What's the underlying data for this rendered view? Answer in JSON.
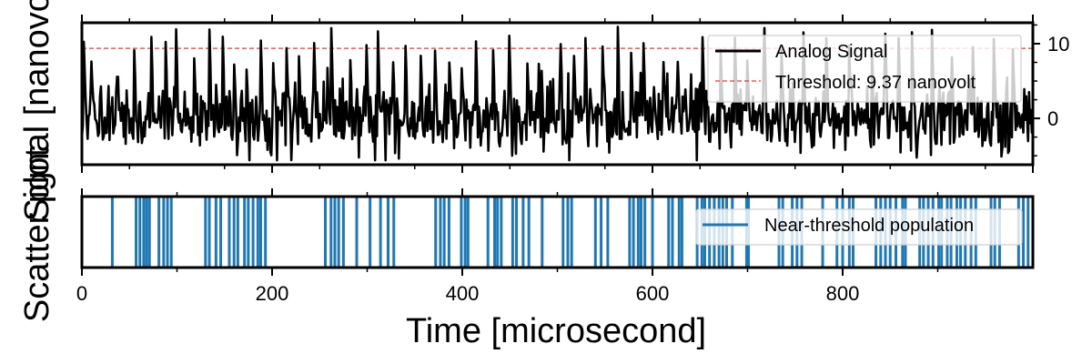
{
  "chart_data": [
    {
      "type": "line",
      "title": "",
      "xlabel": "",
      "ylabel": "Signal [nanovolt]",
      "xlim": [
        0,
        1000
      ],
      "ylim": [
        -6.2,
        12.8
      ],
      "yticks": [
        0,
        10
      ],
      "y_tick_side": "right",
      "grid": false,
      "legend_placement": "top-right",
      "series": [
        {
          "name": "Analog Signal",
          "color": "#000000",
          "generator": {
            "samples": 1000,
            "base_sd": 2.3,
            "spike_positions": [
              2,
              10,
              55,
              73,
              88,
              99,
              118,
              134,
              148,
              160,
              173,
              188,
              201,
              215,
              228,
              244,
              262,
              282,
              299,
              311,
              327,
              340,
              356,
              371,
              386,
              399,
              414,
              432,
              449,
              468,
              480,
              503,
              517,
              529,
              547,
              563,
              577,
              590,
              611,
              626,
              652,
              671,
              686,
              699,
              717,
              735,
              758,
              782,
              806,
              830,
              844,
              858,
              872,
              893,
              914,
              936,
              958,
              978
            ],
            "spike_peak_range": [
              6.5,
              12.4
            ]
          }
        }
      ],
      "annotations": [
        {
          "type": "hline",
          "name": "Threshold: 9.37 nanovolt",
          "y": 9.37,
          "color": "#ff0000",
          "style": "dashed"
        }
      ]
    },
    {
      "type": "event",
      "title": "",
      "xlabel": "Time [microsecond]",
      "ylabel": "Scatter plot",
      "xlim": [
        0,
        1000
      ],
      "xticks": [
        0,
        200,
        400,
        600,
        800
      ],
      "grid": false,
      "legend_placement": "top-right",
      "series": [
        {
          "name": "Near-threshold population",
          "color": "#1f77b4",
          "x": [
            32,
            57,
            61,
            65,
            68,
            71,
            81,
            86,
            90,
            94,
            130,
            134,
            141,
            146,
            155,
            160,
            164,
            171,
            175,
            180,
            185,
            188,
            193,
            256,
            262,
            266,
            270,
            275,
            289,
            303,
            314,
            322,
            328,
            372,
            377,
            381,
            386,
            399,
            403,
            406,
            427,
            434,
            437,
            441,
            453,
            457,
            464,
            470,
            484,
            506,
            511,
            515,
            540,
            546,
            553,
            576,
            580,
            585,
            588,
            592,
            600,
            617,
            621,
            628,
            631,
            647,
            652,
            655,
            660,
            665,
            670,
            674,
            678,
            684,
            699,
            701,
            733,
            737,
            747,
            752,
            757,
            779,
            794,
            800,
            807,
            811,
            835,
            840,
            845,
            850,
            856,
            863,
            866,
            881,
            885,
            890,
            895,
            901,
            904,
            910,
            914,
            920,
            924,
            929,
            935,
            940,
            956,
            960,
            965,
            985,
            990,
            995
          ]
        }
      ]
    }
  ],
  "legend_top": {
    "signal_label": "Analog Signal",
    "threshold_label": "Threshold: 9.37 nanovolt"
  },
  "legend_bottom": {
    "label": "Near-threshold population"
  }
}
